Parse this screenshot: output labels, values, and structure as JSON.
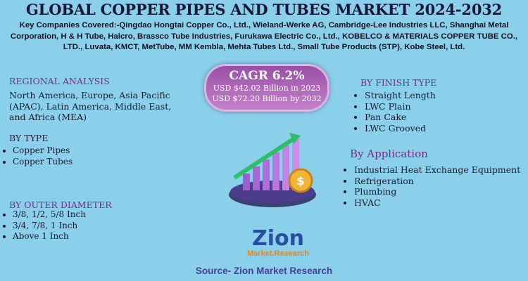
{
  "header": {
    "title": "GLOBAL COPPER PIPES AND TUBES MARKET 2024-2032",
    "key_companies": "Key Companies Covered:-Qingdao Hongtai Copper Co., Ltd., Wieland-Werke AG, Cambridge-Lee Industries LLC, Shanghai Metal Corporation, H & H Tube, Halcro, Brassco Tube Industries, Furukawa Electric Co., Ltd., KOBELCO & MATERIALS COPPER TUBE CO., LTD., Luvata, KMCT, MetTube, MM Kembla, Mehta Tubes Ltd., Small Tube Products (STP), Kobe Steel, Ltd."
  },
  "cagr": {
    "title": "CAGR 6.2%",
    "lines": [
      "USD $42.02 Billion  in 2023",
      "USD $72.20 Billion  by 2032"
    ]
  },
  "regional_analysis": {
    "heading": "REGIONAL ANALYSIS",
    "text": "North America, Europe, Asia Pacific (APAC), Latin America, Middle East, and Africa (MEA)"
  },
  "by_type": {
    "heading": "BY TYPE",
    "items": [
      "Copper Pipes",
      "Copper Tubes"
    ]
  },
  "by_outer_diameter": {
    "heading": "BY OUTER DIAMETER",
    "items": [
      "3/8, 1/2, 5/8 Inch",
      "3/4, 7/8, 1 Inch",
      "Above 1 Inch"
    ]
  },
  "by_finish_type": {
    "heading": "BY FINISH TYPE",
    "items": [
      "Straight Length",
      "LWC Plain",
      "Pan Cake",
      "LWC Grooved"
    ]
  },
  "by_application": {
    "heading": "By Application",
    "items": [
      "Industrial Heat Exchange Equipment",
      "Refrigeration",
      "Plumbing",
      "HVAC"
    ]
  },
  "logo": {
    "brand": "Zion",
    "sub": "Market.Research"
  },
  "source": "Source- Zion Market Research"
}
